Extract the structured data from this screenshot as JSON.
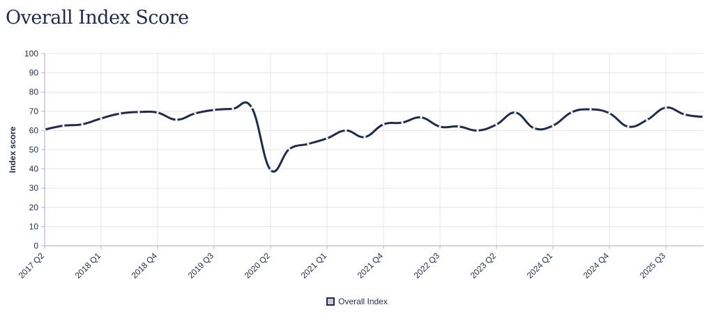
{
  "chart_data": {
    "type": "line",
    "title": "Overall Index Score",
    "ylabel": "Index score",
    "xlabel": "",
    "ylim": [
      0,
      100
    ],
    "yticks": [
      0,
      10,
      20,
      30,
      40,
      50,
      60,
      70,
      80,
      90,
      100
    ],
    "x_tick_labels": [
      "2017 Q2",
      "2018 Q1",
      "2018 Q4",
      "2019 Q3",
      "2020 Q2",
      "2021 Q1",
      "2021 Q4",
      "2022 Q3",
      "2023 Q2",
      "2024 Q1",
      "2024 Q4",
      "2025 Q3"
    ],
    "categories": [
      "2017 Q2",
      "2017 Q3",
      "2017 Q4",
      "2018 Q1",
      "2018 Q2",
      "2018 Q3",
      "2018 Q4",
      "2019 Q1",
      "2019 Q2",
      "2019 Q3",
      "2019 Q4",
      "2020 Q1",
      "2020 Q2",
      "2020 Q3",
      "2020 Q4",
      "2021 Q1",
      "2021 Q2",
      "2021 Q3",
      "2021 Q4",
      "2022 Q1",
      "2022 Q2",
      "2022 Q3",
      "2022 Q4",
      "2023 Q1",
      "2023 Q2",
      "2023 Q3",
      "2023 Q4",
      "2024 Q1",
      "2024 Q2",
      "2024 Q3",
      "2024 Q4",
      "2025 Q1",
      "2025 Q2",
      "2025 Q3",
      "2025 Q4",
      "2026 Q1"
    ],
    "series": [
      {
        "name": "Overall Index",
        "color": "#1d2b52",
        "values": [
          60.5,
          62.5,
          63.2,
          66.3,
          68.8,
          69.6,
          69.3,
          65.6,
          68.9,
          70.7,
          71.3,
          71.9,
          39.5,
          50.3,
          53.0,
          55.9,
          60.0,
          56.6,
          63.2,
          64.1,
          66.8,
          62.0,
          62.1,
          60.0,
          63.1,
          69.3,
          61.2,
          62.5,
          69.5,
          71.0,
          69.0,
          62.0,
          65.5,
          71.9,
          68.3,
          67.0
        ]
      }
    ],
    "grid": true,
    "legend_position": "bottom-center"
  }
}
